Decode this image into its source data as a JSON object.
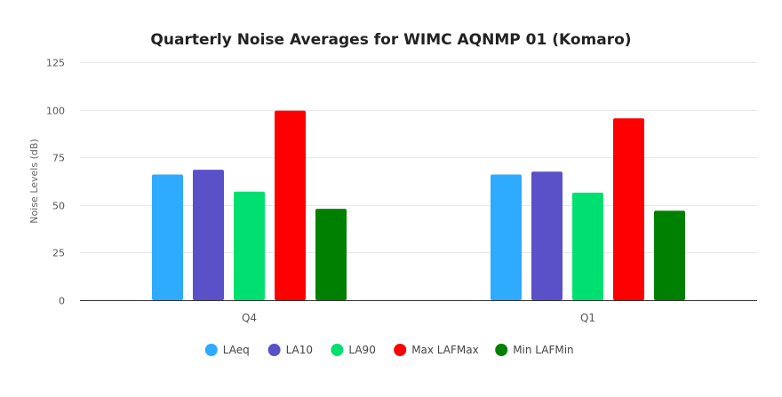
{
  "chart_data": {
    "type": "bar",
    "title": "Quarterly Noise Averages for WIMC AQNMP 01 (Komaro)",
    "xlabel": "",
    "ylabel": "Noise Levels (dB)",
    "ylim": [
      0,
      125
    ],
    "yticks": [
      0,
      25,
      50,
      75,
      100,
      125
    ],
    "grid": true,
    "legend_position": "bottom",
    "categories": [
      "Q4",
      "Q1"
    ],
    "series": [
      {
        "name": "LAeq",
        "color": "#2eaaff",
        "values": [
          66,
          66
        ]
      },
      {
        "name": "LA10",
        "color": "#5a50c8",
        "values": [
          68.5,
          67.5
        ]
      },
      {
        "name": "LA90",
        "color": "#00e070",
        "values": [
          57,
          56.5
        ]
      },
      {
        "name": "Max LAFMax",
        "color": "#ff0000",
        "values": [
          99.5,
          95.5
        ]
      },
      {
        "name": "Min LAFMin",
        "color": "#008000",
        "values": [
          48,
          47
        ]
      }
    ]
  }
}
